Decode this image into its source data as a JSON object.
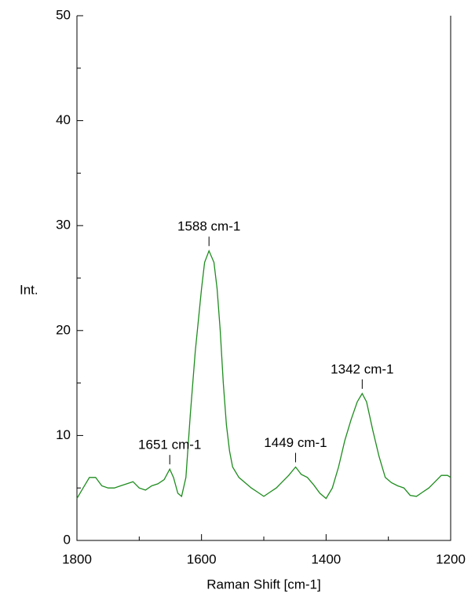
{
  "chart_data": {
    "type": "line",
    "x_label": "Raman Shift [cm-1]",
    "y_label": "Int.",
    "x": [
      1800,
      1790,
      1780,
      1770,
      1760,
      1750,
      1740,
      1730,
      1720,
      1710,
      1700,
      1690,
      1680,
      1670,
      1660,
      1651,
      1645,
      1638,
      1632,
      1625,
      1618,
      1610,
      1600,
      1595,
      1588,
      1580,
      1575,
      1570,
      1565,
      1560,
      1555,
      1550,
      1540,
      1530,
      1520,
      1510,
      1500,
      1490,
      1480,
      1470,
      1460,
      1449,
      1440,
      1430,
      1420,
      1410,
      1400,
      1390,
      1380,
      1370,
      1360,
      1350,
      1342,
      1335,
      1325,
      1315,
      1305,
      1295,
      1285,
      1275,
      1265,
      1255,
      1245,
      1235,
      1225,
      1215,
      1205,
      1200
    ],
    "series": [
      {
        "color": "#1e8c1e",
        "values": [
          4.0,
          5.0,
          6.0,
          6.0,
          5.2,
          5.0,
          5.0,
          5.2,
          5.4,
          5.6,
          5.0,
          4.8,
          5.2,
          5.4,
          5.8,
          6.8,
          6.0,
          4.5,
          4.2,
          6.0,
          12,
          18,
          24,
          26.5,
          27.6,
          26.5,
          24,
          20,
          15,
          11,
          8.5,
          7.0,
          6.0,
          5.5,
          5.0,
          4.6,
          4.2,
          4.6,
          5.0,
          5.6,
          6.2,
          7.0,
          6.3,
          6.0,
          5.3,
          4.5,
          4.0,
          5.0,
          7.0,
          9.5,
          11.5,
          13.2,
          14.0,
          13.2,
          10.5,
          8.0,
          6.0,
          5.5,
          5.2,
          5.0,
          4.3,
          4.2,
          4.6,
          5.0,
          5.6,
          6.2,
          6.2,
          6.0
        ]
      }
    ],
    "annotations": [
      {
        "text": "1651 cm-1",
        "x": 1651
      },
      {
        "text": "1588 cm-1",
        "x": 1588
      },
      {
        "text": "1449 cm-1",
        "x": 1449
      },
      {
        "text": "1342 cm-1",
        "x": 1342
      }
    ],
    "xlim": [
      1800,
      1200
    ],
    "xticks": [
      1800,
      1600,
      1400,
      1200
    ],
    "minor_xticks": [
      1700,
      1500,
      1300
    ],
    "ylim": [
      0,
      50
    ],
    "yticks": [
      0,
      10,
      20,
      30,
      40,
      50
    ],
    "minor_yticks": [
      5,
      15,
      25,
      35,
      45
    ]
  }
}
